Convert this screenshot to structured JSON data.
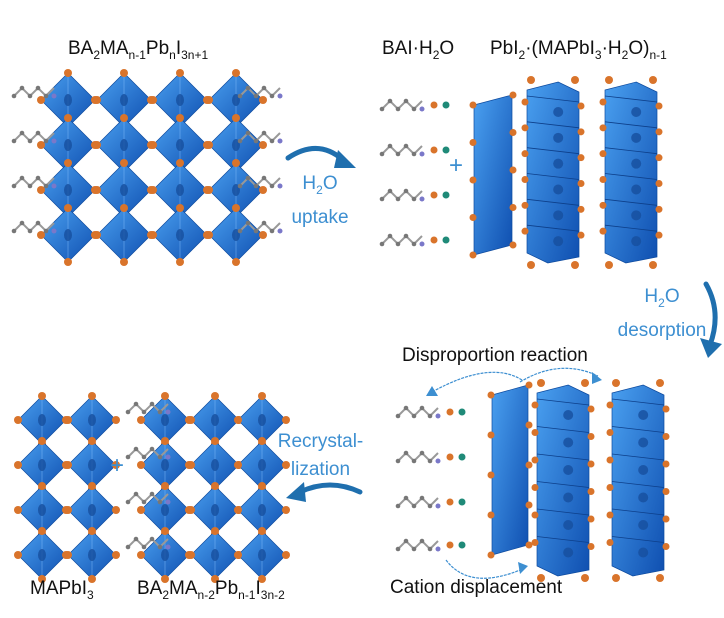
{
  "labels": {
    "top_left_formula": {
      "base": "BA",
      "s1": "2",
      "b2": "MA",
      "s2": "n-1",
      "b3": "Pb",
      "s3": "n",
      "b4": "I",
      "s4": "3n+1"
    },
    "bai_h2o": {
      "b1": "BAI·H",
      "s1": "2",
      "b2": "O"
    },
    "pbi2_hydrate": {
      "b1": "PbI",
      "s1": "2",
      "b2": "·(MAPbI",
      "s2": "3",
      "b3": "·H",
      "s3": "2",
      "b4": "O)",
      "s4": "n-1"
    },
    "h2o_uptake": {
      "line1_base": "H",
      "line1_sub": "2",
      "line1_end": "O",
      "line2": "uptake"
    },
    "h2o_desorption": {
      "line1_base": "H",
      "line1_sub": "2",
      "line1_end": "O",
      "line2": "desorption"
    },
    "disproportion": "Disproportion reaction",
    "recrystallization": {
      "line1": "Recrystal-",
      "line2": "lization"
    },
    "cation_displacement": "Cation displacement",
    "mapbi3": {
      "b1": "MAPbI",
      "s1": "3"
    },
    "bottom_formula": {
      "base": "BA",
      "s1": "2",
      "b2": "MA",
      "s2": "n-2",
      "b3": "Pb",
      "s3": "n-1",
      "b4": "I",
      "s4": "3n-2"
    },
    "plus": "+"
  },
  "colors": {
    "octahedron": "#1f6fd6",
    "iodide": "#d9742b",
    "arrow": "#1f6fae",
    "text_accent": "#3d8fd1",
    "carbon": "#777777",
    "nitrogen": "#7a78c9",
    "oxygen": "#1f8a78"
  }
}
